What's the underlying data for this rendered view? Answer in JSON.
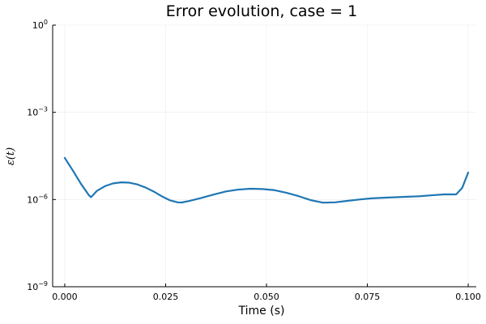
{
  "chart_data": {
    "type": "line",
    "title": "Error evolution, case = 1",
    "xlabel": "Time (s)",
    "ylabel": "ε(t)",
    "xlim": [
      -0.003,
      0.102
    ],
    "ylim": [
      1e-09,
      1
    ],
    "yscale": "log",
    "grid": true,
    "legend": false,
    "xticks": [
      0.0,
      0.025,
      0.05,
      0.075,
      0.1
    ],
    "xtick_labels": [
      "0.000",
      "0.025",
      "0.050",
      "0.075",
      "0.100"
    ],
    "yticks": [
      {
        "value": 1e-09,
        "base": "10",
        "exp": "−9"
      },
      {
        "value": 1e-06,
        "base": "10",
        "exp": "−6"
      },
      {
        "value": 0.001,
        "base": "10",
        "exp": "−3"
      },
      {
        "value": 1,
        "base": "10",
        "exp": "0"
      }
    ],
    "series": [
      {
        "color": "#1f77b4",
        "x": [
          0.0,
          0.002,
          0.004,
          0.006,
          0.0065,
          0.008,
          0.01,
          0.012,
          0.014,
          0.016,
          0.018,
          0.02,
          0.022,
          0.024,
          0.026,
          0.028,
          0.029,
          0.031,
          0.034,
          0.037,
          0.04,
          0.043,
          0.046,
          0.049,
          0.052,
          0.055,
          0.058,
          0.061,
          0.064,
          0.067,
          0.07,
          0.073,
          0.076,
          0.079,
          0.082,
          0.085,
          0.088,
          0.091,
          0.094,
          0.097,
          0.0985,
          0.1
        ],
        "y": [
          2.7e-05,
          1e-05,
          3.5e-06,
          1.4e-06,
          1.2e-06,
          2e-06,
          2.9e-06,
          3.6e-06,
          3.9e-06,
          3.8e-06,
          3.3e-06,
          2.6e-06,
          1.9e-06,
          1.3e-06,
          9.5e-07,
          8e-07,
          7.9e-07,
          9e-07,
          1.15e-06,
          1.5e-06,
          1.9e-06,
          2.2e-06,
          2.35e-06,
          2.3e-06,
          2.1e-06,
          1.7e-06,
          1.3e-06,
          9.5e-07,
          7.8e-07,
          8e-07,
          9e-07,
          1e-06,
          1.1e-06,
          1.15e-06,
          1.2e-06,
          1.25e-06,
          1.3e-06,
          1.4e-06,
          1.5e-06,
          1.5e-06,
          2.5e-06,
          8.5e-06
        ]
      }
    ]
  }
}
